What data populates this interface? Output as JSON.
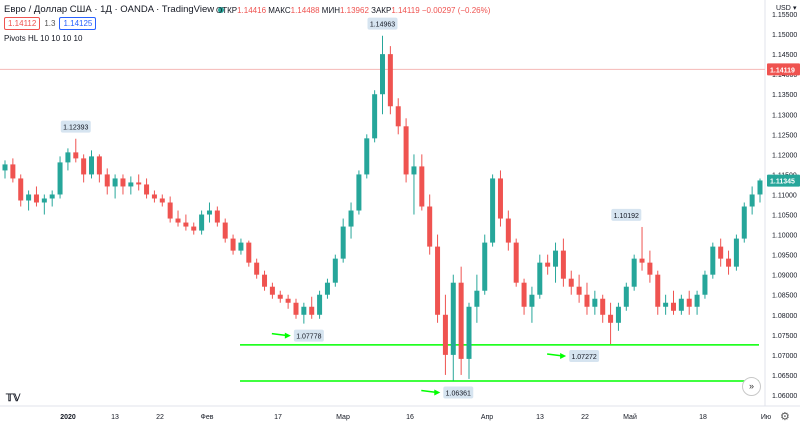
{
  "header": {
    "title": "Евро / Доллар США · 1Д · OANDA · TradingView",
    "ohlc": [
      {
        "label": "ОТКР",
        "value": "1.14416"
      },
      {
        "label": "МАКС",
        "value": "1.14488"
      },
      {
        "label": "МИН",
        "value": "1.13962"
      },
      {
        "label": "ЗАКР",
        "value": "1.14119"
      },
      {
        "label": "",
        "value": "−0.00297 (−0.26%)"
      }
    ],
    "sell_price": "1.14112",
    "spread": "1.3",
    "buy_price": "1.14125",
    "indicator": "Pivots HL 10 10 10 10",
    "currency": "USD",
    "currency_caret": "▾"
  },
  "chart_data": {
    "type": "candlestick",
    "y_axis": {
      "range": [
        1.0575,
        1.1585
      ],
      "ticks": [
        "1.15500",
        "1.15000",
        "1.14500",
        "1.14000",
        "1.13500",
        "1.13000",
        "1.12500",
        "1.12000",
        "1.11500",
        "1.11000",
        "1.10500",
        "1.10000",
        "1.09500",
        "1.09000",
        "1.08500",
        "1.08000",
        "1.07500",
        "1.07000",
        "1.06500",
        "1.06000"
      ]
    },
    "x_axis": {
      "ticks": [
        {
          "label": "2020",
          "bold": true
        },
        {
          "label": "13"
        },
        {
          "label": "22"
        },
        {
          "label": "Фев"
        },
        {
          "label": "17"
        },
        {
          "label": "Мар"
        },
        {
          "label": "16"
        },
        {
          "label": "Апр"
        },
        {
          "label": "13"
        },
        {
          "label": "22"
        },
        {
          "label": "Май"
        },
        {
          "label": "18"
        },
        {
          "label": "Ию"
        }
      ]
    },
    "price_lines": [
      {
        "value": 1.14119,
        "label": "1.14119",
        "color": "#ef5350"
      },
      {
        "value": 1.11345,
        "label": "1.11345",
        "color": "#26a69a"
      }
    ],
    "support_lines": [
      {
        "value": 1.0725,
        "color": "#00ff00"
      },
      {
        "value": 1.0635,
        "color": "#00ff00"
      }
    ],
    "pivot_labels": [
      {
        "text": "1.12393",
        "value": 1.12393,
        "kind": "high"
      },
      {
        "text": "1.14963",
        "value": 1.14963,
        "kind": "high"
      },
      {
        "text": "1.10192",
        "value": 1.10192,
        "kind": "high"
      },
      {
        "text": "1.07778",
        "value": 1.07778,
        "kind": "low"
      },
      {
        "text": "1.06361",
        "value": 1.06361,
        "kind": "low"
      },
      {
        "text": "1.07272",
        "value": 1.07272,
        "kind": "low"
      }
    ],
    "colors": {
      "up": "#26a69a",
      "down": "#ef5350",
      "support": "#00ff00"
    },
    "candles": [
      [
        1.116,
        1.1185,
        1.114,
        1.1175
      ],
      [
        1.1175,
        1.119,
        1.113,
        1.114
      ],
      [
        1.114,
        1.115,
        1.107,
        1.1085
      ],
      [
        1.1085,
        1.111,
        1.106,
        1.11
      ],
      [
        1.11,
        1.112,
        1.107,
        1.108
      ],
      [
        1.108,
        1.11,
        1.105,
        1.109
      ],
      [
        1.109,
        1.111,
        1.107,
        1.11
      ],
      [
        1.11,
        1.1195,
        1.109,
        1.118
      ],
      [
        1.118,
        1.1215,
        1.116,
        1.1205
      ],
      [
        1.1205,
        1.1239,
        1.118,
        1.119
      ],
      [
        1.119,
        1.12,
        1.113,
        1.115
      ],
      [
        1.115,
        1.121,
        1.114,
        1.1195
      ],
      [
        1.1195,
        1.12,
        1.113,
        1.115
      ],
      [
        1.115,
        1.1165,
        1.11,
        1.112
      ],
      [
        1.112,
        1.115,
        1.109,
        1.114
      ],
      [
        1.114,
        1.115,
        1.11,
        1.112
      ],
      [
        1.112,
        1.1145,
        1.11,
        1.113
      ],
      [
        1.113,
        1.115,
        1.111,
        1.1125
      ],
      [
        1.1125,
        1.114,
        1.109,
        1.11
      ],
      [
        1.11,
        1.111,
        1.108,
        1.109
      ],
      [
        1.109,
        1.11,
        1.107,
        1.108
      ],
      [
        1.108,
        1.1095,
        1.103,
        1.104
      ],
      [
        1.104,
        1.106,
        1.102,
        1.103
      ],
      [
        1.103,
        1.105,
        1.101,
        1.102
      ],
      [
        1.102,
        1.103,
        1.1,
        1.101
      ],
      [
        1.101,
        1.106,
        1.1,
        1.105
      ],
      [
        1.105,
        1.108,
        1.103,
        1.106
      ],
      [
        1.106,
        1.107,
        1.102,
        1.103
      ],
      [
        1.103,
        1.104,
        1.098,
        1.099
      ],
      [
        1.099,
        1.1,
        1.095,
        1.096
      ],
      [
        1.096,
        1.099,
        1.095,
        1.098
      ],
      [
        1.098,
        1.0985,
        1.092,
        1.093
      ],
      [
        1.093,
        1.094,
        1.089,
        1.09
      ],
      [
        1.09,
        1.091,
        1.086,
        1.087
      ],
      [
        1.087,
        1.088,
        1.084,
        1.085
      ],
      [
        1.085,
        1.086,
        1.083,
        1.084
      ],
      [
        1.084,
        1.085,
        1.0815,
        1.083
      ],
      [
        1.083,
        1.084,
        1.079,
        1.08
      ],
      [
        1.08,
        1.083,
        1.0778,
        1.082
      ],
      [
        1.082,
        1.0845,
        1.079,
        1.08
      ],
      [
        1.08,
        1.086,
        1.079,
        1.085
      ],
      [
        1.085,
        1.089,
        1.084,
        1.088
      ],
      [
        1.088,
        1.095,
        1.087,
        1.094
      ],
      [
        1.094,
        1.104,
        1.093,
        1.102
      ],
      [
        1.102,
        1.108,
        1.099,
        1.106
      ],
      [
        1.106,
        1.116,
        1.105,
        1.115
      ],
      [
        1.115,
        1.125,
        1.114,
        1.124
      ],
      [
        1.124,
        1.136,
        1.123,
        1.135
      ],
      [
        1.135,
        1.1496,
        1.13,
        1.145
      ],
      [
        1.145,
        1.147,
        1.13,
        1.132
      ],
      [
        1.132,
        1.134,
        1.125,
        1.127
      ],
      [
        1.127,
        1.129,
        1.113,
        1.115
      ],
      [
        1.115,
        1.12,
        1.105,
        1.117
      ],
      [
        1.117,
        1.12,
        1.106,
        1.107
      ],
      [
        1.107,
        1.11,
        1.095,
        1.097
      ],
      [
        1.097,
        1.1,
        1.078,
        1.08
      ],
      [
        1.08,
        1.085,
        1.065,
        1.07
      ],
      [
        1.07,
        1.09,
        1.0636,
        1.088
      ],
      [
        1.088,
        1.092,
        1.065,
        1.069
      ],
      [
        1.069,
        1.083,
        1.064,
        1.082
      ],
      [
        1.082,
        1.09,
        1.078,
        1.086
      ],
      [
        1.086,
        1.1,
        1.085,
        1.098
      ],
      [
        1.098,
        1.115,
        1.097,
        1.114
      ],
      [
        1.114,
        1.116,
        1.102,
        1.104
      ],
      [
        1.104,
        1.106,
        1.096,
        1.098
      ],
      [
        1.098,
        1.099,
        1.087,
        1.088
      ],
      [
        1.088,
        1.089,
        1.08,
        1.082
      ],
      [
        1.082,
        1.087,
        1.078,
        1.085
      ],
      [
        1.085,
        1.095,
        1.084,
        1.093
      ],
      [
        1.093,
        1.095,
        1.09,
        1.092
      ],
      [
        1.092,
        1.098,
        1.088,
        1.096
      ],
      [
        1.096,
        1.099,
        1.087,
        1.089
      ],
      [
        1.089,
        1.091,
        1.085,
        1.087
      ],
      [
        1.087,
        1.09,
        1.083,
        1.085
      ],
      [
        1.085,
        1.088,
        1.08,
        1.082
      ],
      [
        1.082,
        1.086,
        1.08,
        1.084
      ],
      [
        1.084,
        1.085,
        1.078,
        1.08
      ],
      [
        1.08,
        1.083,
        1.0727,
        1.078
      ],
      [
        1.078,
        1.083,
        1.076,
        1.082
      ],
      [
        1.082,
        1.088,
        1.081,
        1.087
      ],
      [
        1.087,
        1.095,
        1.086,
        1.094
      ],
      [
        1.094,
        1.1019,
        1.091,
        1.093
      ],
      [
        1.093,
        1.096,
        1.088,
        1.09
      ],
      [
        1.09,
        1.091,
        1.08,
        1.082
      ],
      [
        1.082,
        1.085,
        1.08,
        1.083
      ],
      [
        1.083,
        1.086,
        1.08,
        1.081
      ],
      [
        1.081,
        1.085,
        1.08,
        1.084
      ],
      [
        1.084,
        1.086,
        1.08,
        1.082
      ],
      [
        1.082,
        1.086,
        1.08,
        1.085
      ],
      [
        1.085,
        1.091,
        1.084,
        1.09
      ],
      [
        1.09,
        1.098,
        1.089,
        1.097
      ],
      [
        1.097,
        1.099,
        1.092,
        1.094
      ],
      [
        1.094,
        1.096,
        1.09,
        1.092
      ],
      [
        1.092,
        1.1,
        1.091,
        1.099
      ],
      [
        1.099,
        1.108,
        1.098,
        1.107
      ],
      [
        1.107,
        1.112,
        1.105,
        1.11
      ],
      [
        1.11,
        1.114,
        1.108,
        1.1135
      ]
    ]
  },
  "ui": {
    "forward_icon": "»",
    "tv_logo": "𝕋𝕍",
    "settings_icon": "⚙"
  }
}
